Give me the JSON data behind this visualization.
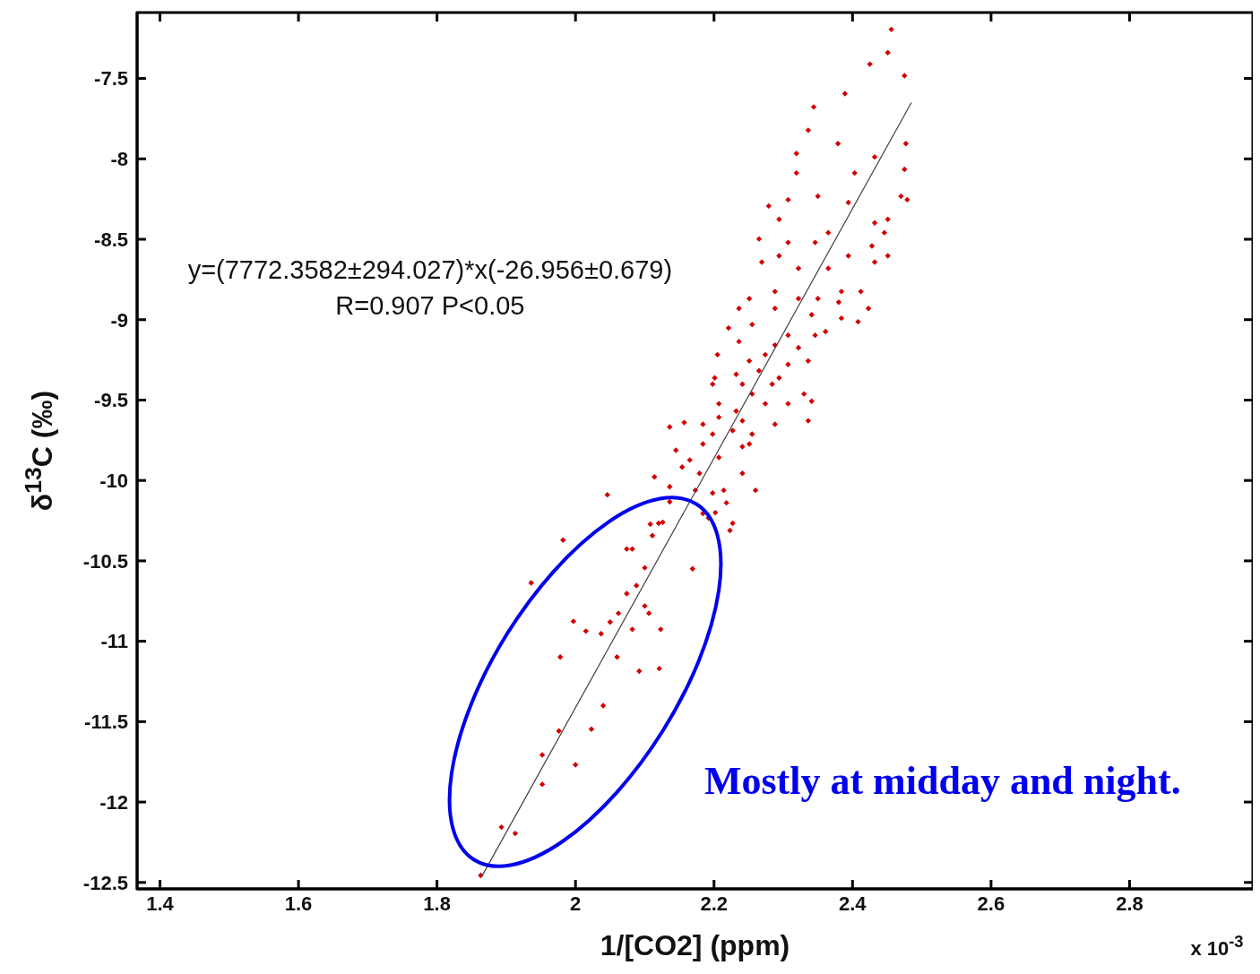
{
  "chart_data": {
    "type": "scatter",
    "xlabel": "1/[CO2] (ppm)",
    "ylabel": "δ$^{13}$C (‰)",
    "annotations": [
      "y=(7772.3582±294.027)*x(-26.956±0.679)",
      "R=0.907 P<0.05",
      "Mostly at midday and night.",
      "x 10$^{-3}$"
    ],
    "xlim": [
      1.367,
      2.978
    ],
    "xticks": [
      1.4,
      1.6,
      1.8,
      2,
      2.2,
      2.4,
      2.6,
      2.8
    ],
    "ylim": [
      -12.54,
      -7.09
    ],
    "yticks": [
      -7.5,
      -8,
      -8.5,
      -9,
      -9.5,
      -10,
      -10.5,
      -11,
      -11.5,
      -12,
      -12.5
    ],
    "grid": false,
    "series": [
      {
        "marker": "diamond",
        "color": "#d40000",
        "x": [
          1.863,
          1.893,
          1.913,
          1.952,
          1.952,
          2.0,
          1.976,
          2.04,
          2.023,
          1.978,
          1.936,
          1.982,
          1.997,
          2.015,
          2.037,
          2.05,
          2.062,
          2.06,
          2.082,
          2.092,
          2.121,
          2.123,
          2.106,
          2.1,
          2.074,
          2.088,
          2.1,
          2.169,
          2.074,
          2.082,
          2.111,
          2.126,
          2.046,
          2.108,
          2.136,
          2.192,
          2.202,
          2.223,
          2.214,
          2.173,
          2.456,
          2.451,
          2.475,
          2.425,
          2.389,
          2.344,
          2.336,
          2.477,
          2.319,
          2.319,
          2.379,
          2.432,
          2.475,
          2.47,
          2.403,
          2.279,
          2.307,
          2.35,
          2.394,
          2.451,
          2.432,
          2.265,
          2.294,
          2.307,
          2.346,
          2.365,
          2.428,
          2.451,
          2.394,
          2.294,
          2.269,
          2.365,
          2.432,
          2.322,
          2.251,
          2.288,
          2.322,
          2.35,
          2.384,
          2.412,
          2.236,
          2.288,
          2.341,
          2.38,
          2.423,
          2.384,
          2.408,
          2.221,
          2.255,
          2.307,
          2.346,
          2.236,
          2.288,
          2.322,
          2.361,
          2.205,
          2.251,
          2.274,
          2.307,
          2.336,
          2.201,
          2.232,
          2.265,
          2.294,
          2.198,
          2.241,
          2.284,
          2.255,
          2.307,
          2.33,
          2.341,
          2.207,
          2.232,
          2.274,
          2.207,
          2.241,
          2.288,
          2.336,
          2.136,
          2.157,
          2.184,
          2.227,
          2.255,
          2.198,
          2.145,
          2.184,
          2.241,
          2.251,
          2.165,
          2.207,
          2.114,
          2.154,
          2.179,
          2.241,
          2.26,
          2.136,
          2.198,
          2.218,
          2.184,
          2.12,
          2.227,
          2.479,
          2.446
        ],
        "values": [
          -12.456,
          -12.156,
          -12.195,
          -11.89,
          -11.707,
          -11.768,
          -11.558,
          -11.4,
          -11.547,
          -11.098,
          -10.637,
          -10.371,
          -10.876,
          -10.937,
          -10.953,
          -10.881,
          -10.826,
          -11.098,
          -10.926,
          -11.186,
          -11.17,
          -10.926,
          -10.826,
          -10.781,
          -10.704,
          -10.654,
          -10.543,
          -10.549,
          -10.426,
          -10.426,
          -10.343,
          -10.26,
          -10.089,
          -10.272,
          -10.133,
          -10.233,
          -10.2,
          -10.311,
          -10.061,
          -10.061,
          -7.195,
          -7.339,
          -7.483,
          -7.411,
          -7.594,
          -7.677,
          -7.822,
          -7.905,
          -7.966,
          -8.088,
          -7.905,
          -7.988,
          -8.065,
          -8.232,
          -8.088,
          -8.293,
          -8.254,
          -8.232,
          -8.271,
          -8.376,
          -8.398,
          -8.498,
          -8.376,
          -8.52,
          -8.52,
          -8.459,
          -8.542,
          -8.603,
          -8.603,
          -8.603,
          -8.642,
          -8.681,
          -8.642,
          -8.681,
          -8.869,
          -8.825,
          -8.869,
          -8.869,
          -8.825,
          -8.825,
          -8.93,
          -8.93,
          -8.969,
          -8.891,
          -8.93,
          -8.991,
          -9.013,
          -9.052,
          -9.03,
          -9.097,
          -9.097,
          -9.136,
          -9.158,
          -9.174,
          -9.074,
          -9.218,
          -9.257,
          -9.218,
          -9.279,
          -9.257,
          -9.362,
          -9.34,
          -9.318,
          -9.362,
          -9.401,
          -9.401,
          -9.401,
          -9.462,
          -9.523,
          -9.462,
          -9.507,
          -9.523,
          -9.568,
          -9.523,
          -9.607,
          -9.629,
          -9.651,
          -9.629,
          -9.667,
          -9.64,
          -9.651,
          -9.69,
          -9.712,
          -9.712,
          -9.812,
          -9.773,
          -9.79,
          -9.773,
          -9.873,
          -9.857,
          -9.978,
          -9.917,
          -9.956,
          -9.956,
          -10.061,
          -10.039,
          -10.078,
          -10.139,
          -10.205,
          -10.266,
          -10.266,
          -8.254,
          -8.459
        ]
      },
      {
        "type": "line",
        "color": "#404040",
        "x": [
          1.865,
          2.485
        ],
        "values": [
          -12.46,
          -7.65
        ]
      }
    ]
  }
}
